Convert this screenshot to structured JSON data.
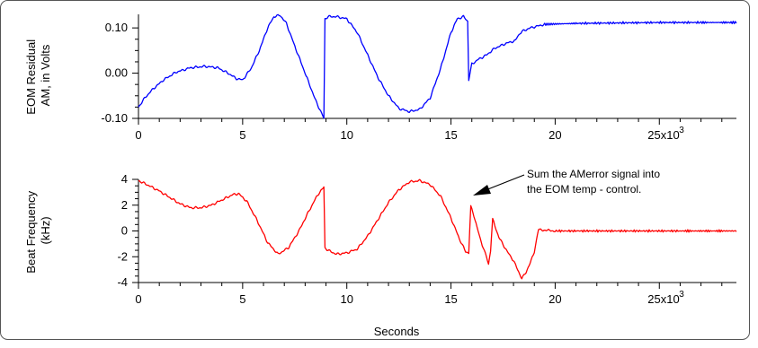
{
  "chart_data": [
    {
      "type": "line",
      "ylabel": "EOM Residual\nAM, in Volts",
      "ylim": [
        -0.1,
        0.13
      ],
      "xlim": [
        0,
        28700
      ],
      "yticks": [
        -0.1,
        0.0,
        0.1
      ],
      "ytick_labels": [
        "-0.10",
        "0.00",
        "0.10"
      ],
      "xticks": [
        0,
        5000,
        10000,
        15000,
        20000,
        25000
      ],
      "xtick_labels": [
        "0",
        "5",
        "10",
        "15",
        "20",
        "25x10"
      ],
      "x_multiplier_exponent": "3",
      "grid": false,
      "series": [
        {
          "color": "#0000ff",
          "x": [
            0,
            300,
            700,
            1200,
            1800,
            2500,
            3200,
            3800,
            4300,
            4700,
            5000,
            5400,
            5800,
            6200,
            6500,
            6800,
            7100,
            7500,
            8000,
            8500,
            8900,
            8950,
            9100,
            9500,
            10000,
            10500,
            11000,
            11500,
            12000,
            12500,
            13000,
            13500,
            14000,
            14500,
            15000,
            15300,
            15600,
            15800,
            15850,
            16000,
            16300,
            16700,
            17100,
            17600,
            17800,
            18100,
            18200,
            18400,
            18800,
            19500,
            21000,
            23000,
            25000,
            27000,
            28700
          ],
          "y": [
            -0.075,
            -0.055,
            -0.035,
            -0.015,
            0.002,
            0.012,
            0.015,
            0.012,
            0.0,
            -0.012,
            -0.015,
            0.01,
            0.05,
            0.1,
            0.125,
            0.128,
            0.11,
            0.06,
            0.0,
            -0.06,
            -0.1,
            0.12,
            0.125,
            0.125,
            0.12,
            0.09,
            0.04,
            -0.01,
            -0.05,
            -0.078,
            -0.085,
            -0.08,
            -0.055,
            0.01,
            0.09,
            0.12,
            0.125,
            0.115,
            -0.015,
            0.02,
            0.03,
            0.04,
            0.055,
            0.065,
            0.068,
            0.072,
            0.082,
            0.092,
            0.1,
            0.108,
            0.11,
            0.111,
            0.112,
            0.112,
            0.112
          ]
        }
      ]
    },
    {
      "type": "line",
      "xlabel": "Seconds",
      "ylabel": "Beat Frequency\n(kHz)",
      "ylim": [
        -4,
        4
      ],
      "xlim": [
        0,
        28700
      ],
      "yticks": [
        -4,
        -2,
        0,
        2,
        4
      ],
      "ytick_labels": [
        "-4",
        "-2",
        "0",
        "2",
        "4"
      ],
      "xticks": [
        0,
        5000,
        10000,
        15000,
        20000,
        25000
      ],
      "xtick_labels": [
        "0",
        "5",
        "10",
        "15",
        "20",
        "25x10"
      ],
      "x_multiplier_exponent": "3",
      "grid": false,
      "annotation": "Sum the AMerror signal into\nthe EOM temp - control.",
      "series": [
        {
          "color": "#ff0000",
          "x": [
            0,
            400,
            1000,
            1500,
            2000,
            2500,
            3000,
            3500,
            4000,
            4500,
            4800,
            5200,
            5700,
            6200,
            6700,
            7200,
            7700,
            8200,
            8600,
            8900,
            8950,
            9100,
            9500,
            10000,
            10500,
            11000,
            11500,
            12000,
            12500,
            13000,
            13500,
            14000,
            14500,
            15000,
            15400,
            15700,
            15850,
            15950,
            16100,
            16400,
            16700,
            16800,
            16900,
            17000,
            17300,
            17700,
            18000,
            18200,
            18400,
            18600,
            18800,
            19000,
            19200,
            20000,
            22000,
            24000,
            26000,
            28700
          ],
          "y": [
            3.9,
            3.6,
            3.1,
            2.6,
            2.1,
            1.8,
            1.8,
            2.0,
            2.4,
            2.8,
            2.9,
            2.3,
            0.8,
            -0.9,
            -1.8,
            -1.3,
            0.0,
            1.6,
            2.8,
            3.4,
            -1.3,
            -1.5,
            -1.8,
            -1.7,
            -1.4,
            -0.4,
            0.9,
            2.2,
            3.2,
            3.8,
            3.9,
            3.6,
            2.7,
            1.0,
            -0.6,
            -1.6,
            -1.7,
            1.9,
            1.2,
            -0.6,
            -2.0,
            -2.6,
            -1.5,
            0.9,
            -0.5,
            -1.6,
            -2.3,
            -3.0,
            -3.7,
            -3.2,
            -2.5,
            -1.6,
            0.1,
            0.0,
            0.0,
            0.0,
            0.0,
            0.0
          ]
        }
      ]
    }
  ]
}
